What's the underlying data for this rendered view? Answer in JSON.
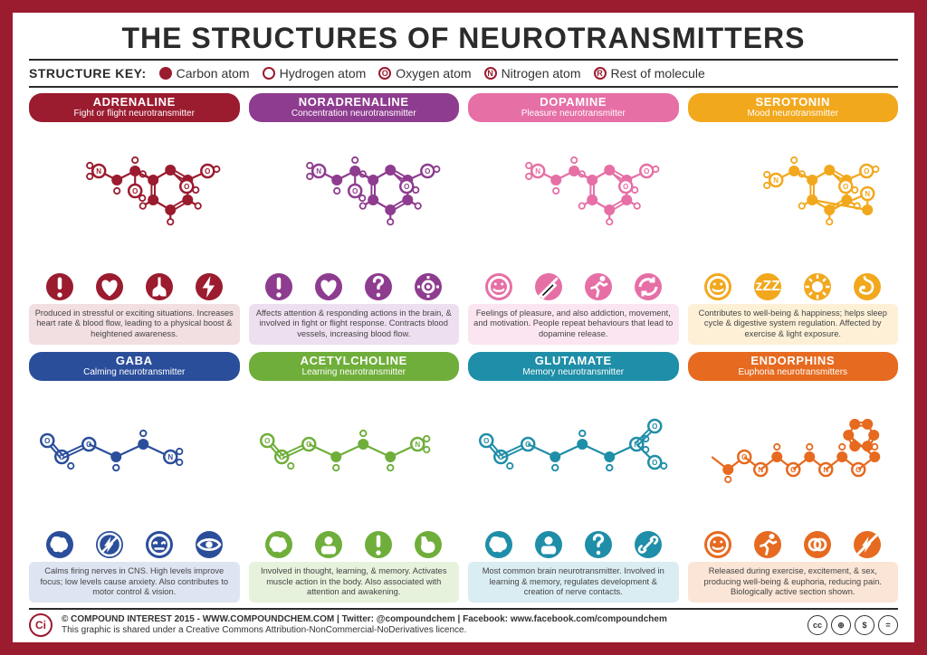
{
  "title": "THE STRUCTURES OF NEUROTRANSMITTERS",
  "key": {
    "label": "STRUCTURE KEY:",
    "carbon": "Carbon atom",
    "hydrogen": "Hydrogen atom",
    "oxygen": "Oxygen atom",
    "nitrogen": "Nitrogen atom",
    "rest": "Rest of molecule",
    "color": "#9b1b2f"
  },
  "cards": [
    {
      "name": "ADRENALINE",
      "sub": "Fight or flight neurotransmitter",
      "color": "#9b1b2f",
      "tint": "#f2dfe2",
      "desc": "Produced in stressful or exciting situations. Increases heart rate & blood flow, leading to a physical boost & heightened awareness.",
      "icons": [
        "exclaim",
        "heart",
        "lungs",
        "bolt"
      ],
      "mol": {
        "ring": "benzene",
        "chain": 3,
        "O": 3,
        "N": 1
      }
    },
    {
      "name": "NORADRENALINE",
      "sub": "Concentration neurotransmitter",
      "color": "#8e3c8f",
      "tint": "#eedff0",
      "desc": "Affects attention & responding actions in the brain, & involved in fight or flight response. Contracts blood vessels, increasing blood flow.",
      "icons": [
        "exclaim",
        "heart",
        "question",
        "focus"
      ],
      "mol": {
        "ring": "benzene",
        "chain": 3,
        "O": 3,
        "N": 1
      }
    },
    {
      "name": "DOPAMINE",
      "sub": "Pleasure neurotransmitter",
      "color": "#e66fa6",
      "tint": "#fbe5f0",
      "desc": "Feelings of pleasure, and also addiction, movement, and motivation. People repeat behaviours that lead to dopamine release.",
      "icons": [
        "smile",
        "needle",
        "run",
        "cycle"
      ],
      "mol": {
        "ring": "benzene",
        "chain": 3,
        "O": 2,
        "N": 1
      }
    },
    {
      "name": "SEROTONIN",
      "sub": "Mood neurotransmitter",
      "color": "#f2a81d",
      "tint": "#fdf0d6",
      "desc": "Contributes to well-being & happiness; helps sleep cycle & digestive system regulation. Affected by exercise & light exposure.",
      "icons": [
        "smile",
        "zzz",
        "sun",
        "stomach"
      ],
      "mol": {
        "ring": "indole",
        "chain": 2,
        "O": 1,
        "N": 2
      }
    },
    {
      "name": "GABA",
      "sub": "Calming neurotransmitter",
      "color": "#2b4e9b",
      "tint": "#dee5f2",
      "desc": "Calms firing nerves in CNS. High levels improve focus; low levels cause anxiety. Also contributes to motor control & vision.",
      "icons": [
        "brain",
        "nozap",
        "calm",
        "eye"
      ],
      "mol": {
        "ring": "none",
        "chain": 4,
        "O": 2,
        "N": 1
      }
    },
    {
      "name": "ACETYLCHOLINE",
      "sub": "Learning neurotransmitter",
      "color": "#6fae3a",
      "tint": "#e7f2dc",
      "desc": "Involved in thought, learning, & memory. Activates muscle action in the body. Also associated with attention and awakening.",
      "icons": [
        "brain",
        "think",
        "exclaim",
        "muscle"
      ],
      "mol": {
        "ring": "none",
        "chain": 5,
        "O": 2,
        "N": 1
      }
    },
    {
      "name": "GLUTAMATE",
      "sub": "Memory neurotransmitter",
      "color": "#1f8ea8",
      "tint": "#d9edf2",
      "desc": "Most common brain neurotransmitter. Involved in learning & memory, regulates development & creation of nerve contacts.",
      "icons": [
        "brain",
        "think",
        "question",
        "link"
      ],
      "mol": {
        "ring": "none",
        "chain": 5,
        "O": 4,
        "N": 1
      }
    },
    {
      "name": "ENDORPHINS",
      "sub": "Euphoria neurotransmitters",
      "color": "#e66a1f",
      "tint": "#fbe5d6",
      "desc": "Released during exercise, excitement, & sex, producing well-being & euphoria, reducing pain. Biologically active section shown.",
      "icons": [
        "smile",
        "run",
        "gender",
        "nopain"
      ],
      "mol": {
        "ring": "peptide",
        "chain": 8,
        "O": 4,
        "N": 3
      }
    }
  ],
  "footer": {
    "line1": "© COMPOUND INTEREST 2015 - WWW.COMPOUNDCHEM.COM | Twitter: @compoundchem | Facebook: www.facebook.com/compoundchem",
    "line2": "This graphic is shared under a Creative Commons Attribution-NonCommercial-NoDerivatives licence.",
    "ci": "Ci",
    "cc": [
      "cc",
      "BY",
      "NC",
      "ND"
    ]
  }
}
